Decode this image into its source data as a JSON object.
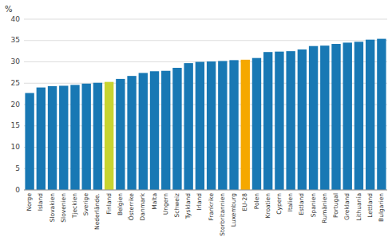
{
  "chart_data": {
    "type": "bar",
    "ylabel": "%",
    "categories": [
      "Norge",
      "Island",
      "Slovakien",
      "Slovenien",
      "Tjeckien",
      "Sverige",
      "Nederlände.",
      "Finland",
      "Belgien",
      "Österrike",
      "Danmark",
      "Malta",
      "Ungern",
      "Schweiz",
      "Tyskland",
      "Irland",
      "Frankrike",
      "Storbritannien",
      "Luxemburg",
      "EU-28",
      "Polen",
      "Kroatien",
      "Cypern",
      "Italien",
      "Estland",
      "Spanien",
      "Rumänien",
      "Portugal",
      "Grekland",
      "Lithuanía",
      "Lettland",
      "Bulgarien"
    ],
    "values": [
      22.7,
      24.0,
      24.3,
      24.4,
      24.6,
      24.9,
      25.1,
      25.3,
      26.0,
      26.7,
      27.4,
      27.8,
      27.9,
      28.6,
      29.7,
      30.0,
      30.1,
      30.2,
      30.4,
      30.5,
      30.9,
      32.3,
      32.4,
      32.5,
      32.9,
      33.7,
      33.8,
      34.2,
      34.5,
      34.7,
      35.2,
      35.4
    ],
    "colors": [
      "#1878b4",
      "#1878b4",
      "#1878b4",
      "#1878b4",
      "#1878b4",
      "#1878b4",
      "#1878b4",
      "#c8d430",
      "#1878b4",
      "#1878b4",
      "#1878b4",
      "#1878b4",
      "#1878b4",
      "#1878b4",
      "#1878b4",
      "#1878b4",
      "#1878b4",
      "#1878b4",
      "#1878b4",
      "#f5a800",
      "#1878b4",
      "#1878b4",
      "#1878b4",
      "#1878b4",
      "#1878b4",
      "#1878b4",
      "#1878b4",
      "#1878b4",
      "#1878b4",
      "#1878b4",
      "#1878b4",
      "#1878b4"
    ],
    "ylim": [
      0,
      40
    ],
    "yticks": [
      0,
      5,
      10,
      15,
      20,
      25,
      30,
      35,
      40
    ],
    "grid": true
  }
}
